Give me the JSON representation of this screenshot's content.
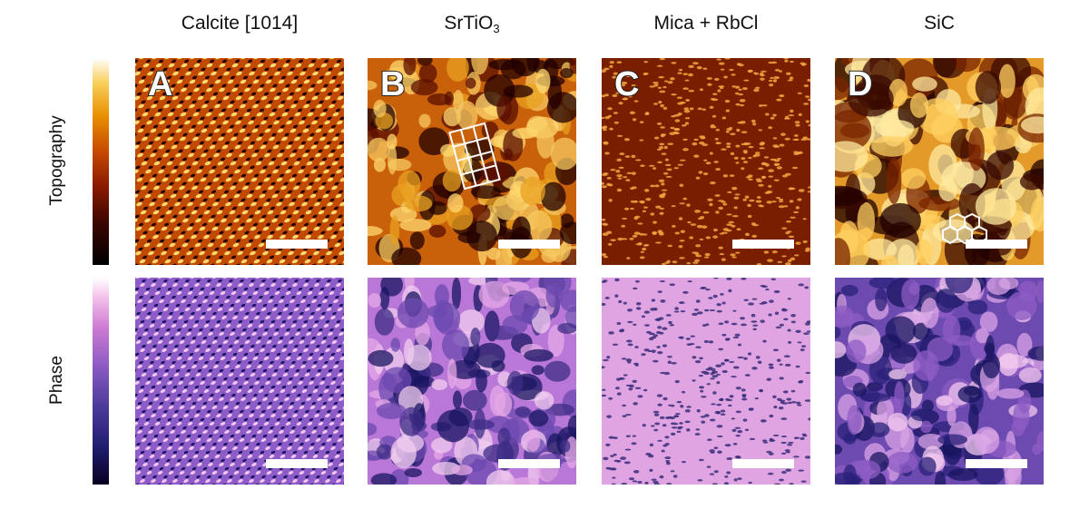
{
  "columns": [
    {
      "title": "Calcite [1014]",
      "letter": "A"
    },
    {
      "title_main": "SrTiO",
      "title_sub": "3",
      "letter": "B"
    },
    {
      "title": "Mica + RbCl",
      "letter": "C"
    },
    {
      "title": "SiC",
      "letter": "D"
    }
  ],
  "rows": {
    "topography": "Topography",
    "phase": "Phase"
  },
  "colors": {
    "topo_dark": "#200000",
    "topo_mid": "#c24a00",
    "topo_light": "#ffd870",
    "phase_dark": "#1a1660",
    "phase_mid": "#8d5cc8",
    "phase_light": "#f2c8ee"
  }
}
